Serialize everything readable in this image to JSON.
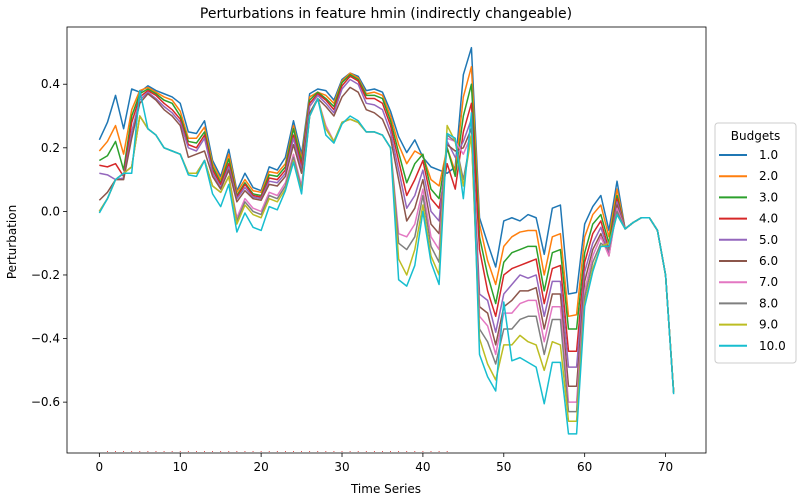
{
  "chart_data": {
    "type": "line",
    "title": "Perturbations in feature hmin (indirectly changeable)",
    "xlabel": "Time Series",
    "ylabel": "Perturbation",
    "xlim": [
      -4,
      75
    ],
    "ylim": [
      -0.76,
      0.58
    ],
    "xticks": [
      0,
      10,
      20,
      30,
      40,
      50,
      60,
      70
    ],
    "yticks": [
      -0.6,
      -0.4,
      -0.2,
      0.0,
      0.2,
      0.4
    ],
    "ytick_labels": [
      "−0.6",
      "−0.4",
      "−0.2",
      "0.0",
      "0.2",
      "0.4"
    ],
    "grid": false,
    "legend": {
      "title": "Budgets",
      "placement": "right-outside"
    },
    "x": [
      0,
      1,
      2,
      3,
      4,
      5,
      6,
      7,
      8,
      9,
      10,
      11,
      12,
      13,
      14,
      15,
      16,
      17,
      18,
      19,
      20,
      21,
      22,
      23,
      24,
      25,
      26,
      27,
      28,
      29,
      30,
      31,
      32,
      33,
      34,
      35,
      36,
      37,
      38,
      39,
      40,
      41,
      42,
      43,
      44,
      45,
      46,
      47,
      48,
      49,
      50,
      51,
      52,
      53,
      54,
      55,
      56,
      57,
      58,
      59,
      60,
      61,
      62,
      63,
      64,
      65,
      66,
      67,
      68,
      69,
      70,
      71
    ],
    "series": [
      {
        "name": "1.0",
        "color": "#1f77b4",
        "values": [
          0.225,
          0.28,
          0.365,
          0.26,
          0.385,
          0.375,
          0.395,
          0.38,
          0.37,
          0.36,
          0.34,
          0.25,
          0.245,
          0.285,
          0.16,
          0.11,
          0.195,
          0.065,
          0.12,
          0.075,
          0.065,
          0.14,
          0.13,
          0.17,
          0.285,
          0.18,
          0.37,
          0.385,
          0.38,
          0.35,
          0.415,
          0.435,
          0.425,
          0.38,
          0.385,
          0.375,
          0.315,
          0.235,
          0.185,
          0.225,
          0.17,
          0.14,
          0.13,
          0.12,
          0.14,
          0.43,
          0.515,
          -0.02,
          -0.1,
          -0.175,
          -0.03,
          -0.02,
          -0.03,
          -0.01,
          -0.02,
          -0.135,
          0.01,
          0.02,
          -0.26,
          -0.255,
          -0.04,
          0.015,
          0.05,
          -0.06,
          0.095,
          -0.055,
          -0.035,
          -0.02,
          -0.02,
          -0.06,
          -0.2,
          -0.57
        ]
      },
      {
        "name": "2.0",
        "color": "#ff7f0e",
        "values": [
          0.19,
          0.22,
          0.27,
          0.18,
          0.32,
          0.38,
          0.39,
          0.375,
          0.36,
          0.35,
          0.315,
          0.23,
          0.23,
          0.265,
          0.15,
          0.1,
          0.18,
          0.06,
          0.1,
          0.065,
          0.06,
          0.125,
          0.12,
          0.15,
          0.27,
          0.165,
          0.36,
          0.375,
          0.365,
          0.34,
          0.41,
          0.435,
          0.42,
          0.37,
          0.375,
          0.365,
          0.3,
          0.21,
          0.15,
          0.19,
          0.175,
          0.1,
          0.08,
          0.2,
          0.125,
          0.36,
          0.455,
          -0.04,
          -0.155,
          -0.23,
          -0.11,
          -0.08,
          -0.065,
          -0.06,
          -0.06,
          -0.2,
          -0.08,
          -0.07,
          -0.33,
          -0.325,
          -0.08,
          -0.01,
          0.02,
          -0.08,
          0.07,
          -0.055,
          -0.035,
          -0.02,
          -0.02,
          -0.06,
          -0.2,
          -0.57
        ]
      },
      {
        "name": "3.0",
        "color": "#2ca02c",
        "values": [
          0.16,
          0.175,
          0.22,
          0.13,
          0.3,
          0.37,
          0.385,
          0.37,
          0.35,
          0.34,
          0.3,
          0.22,
          0.215,
          0.25,
          0.14,
          0.09,
          0.165,
          0.05,
          0.09,
          0.055,
          0.05,
          0.115,
          0.11,
          0.14,
          0.26,
          0.155,
          0.35,
          0.375,
          0.355,
          0.33,
          0.405,
          0.43,
          0.415,
          0.365,
          0.365,
          0.355,
          0.285,
          0.185,
          0.09,
          0.15,
          0.18,
          0.07,
          0.04,
          0.2,
          0.11,
          0.3,
          0.4,
          -0.08,
          -0.2,
          -0.29,
          -0.16,
          -0.13,
          -0.12,
          -0.11,
          -0.11,
          -0.25,
          -0.13,
          -0.12,
          -0.37,
          -0.37,
          -0.13,
          -0.04,
          -0.01,
          -0.1,
          0.05,
          -0.055,
          -0.035,
          -0.02,
          -0.02,
          -0.06,
          -0.2,
          -0.57
        ]
      },
      {
        "name": "4.0",
        "color": "#d62728",
        "values": [
          0.145,
          0.14,
          0.15,
          0.11,
          0.28,
          0.36,
          0.38,
          0.365,
          0.34,
          0.32,
          0.29,
          0.21,
          0.2,
          0.24,
          0.13,
          0.085,
          0.15,
          0.045,
          0.085,
          0.05,
          0.045,
          0.105,
          0.1,
          0.13,
          0.24,
          0.145,
          0.34,
          0.37,
          0.35,
          0.32,
          0.395,
          0.425,
          0.41,
          0.355,
          0.355,
          0.34,
          0.27,
          0.16,
          0.05,
          0.1,
          0.16,
          0.04,
          0.01,
          0.15,
          0.07,
          0.25,
          0.34,
          -0.12,
          -0.25,
          -0.33,
          -0.2,
          -0.18,
          -0.17,
          -0.16,
          -0.15,
          -0.29,
          -0.18,
          -0.17,
          -0.44,
          -0.44,
          -0.16,
          -0.07,
          -0.03,
          -0.12,
          0.04,
          -0.055,
          -0.035,
          -0.02,
          -0.02,
          -0.06,
          -0.2,
          -0.57
        ]
      },
      {
        "name": "5.0",
        "color": "#9467bd",
        "values": [
          0.12,
          0.115,
          0.1,
          0.105,
          0.25,
          0.35,
          0.375,
          0.355,
          0.33,
          0.31,
          0.28,
          0.2,
          0.19,
          0.23,
          0.12,
          0.075,
          0.14,
          0.04,
          0.075,
          0.045,
          0.04,
          0.095,
          0.09,
          0.12,
          0.23,
          0.13,
          0.33,
          0.365,
          0.34,
          0.31,
          0.385,
          0.415,
          0.4,
          0.34,
          0.335,
          0.32,
          0.25,
          0.13,
          0.01,
          0.05,
          0.13,
          0.0,
          -0.03,
          0.22,
          0.17,
          0.22,
          0.29,
          -0.26,
          -0.28,
          -0.38,
          -0.26,
          -0.23,
          -0.2,
          -0.21,
          -0.2,
          -0.33,
          -0.22,
          -0.22,
          -0.49,
          -0.49,
          -0.19,
          -0.1,
          -0.05,
          -0.13,
          0.03,
          -0.055,
          -0.035,
          -0.02,
          -0.02,
          -0.06,
          -0.2,
          -0.57
        ]
      },
      {
        "name": "6.0",
        "color": "#8c564b",
        "values": [
          0.035,
          0.06,
          0.1,
          0.1,
          0.23,
          0.34,
          0.37,
          0.35,
          0.32,
          0.3,
          0.27,
          0.17,
          0.18,
          0.19,
          0.11,
          0.07,
          0.13,
          0.03,
          0.065,
          0.04,
          0.035,
          0.085,
          0.08,
          0.11,
          0.21,
          0.12,
          0.31,
          0.355,
          0.33,
          0.3,
          0.36,
          0.39,
          0.375,
          0.32,
          0.31,
          0.29,
          0.23,
          0.1,
          -0.03,
          0.01,
          0.1,
          -0.04,
          -0.07,
          0.21,
          0.19,
          0.2,
          0.26,
          -0.3,
          -0.32,
          -0.42,
          -0.3,
          -0.28,
          -0.25,
          -0.25,
          -0.24,
          -0.37,
          -0.26,
          -0.26,
          -0.55,
          -0.55,
          -0.22,
          -0.12,
          -0.07,
          -0.14,
          0.02,
          -0.055,
          -0.035,
          -0.02,
          -0.02,
          -0.06,
          -0.2,
          -0.57
        ]
      },
      {
        "name": "7.0",
        "color": "#e377c2",
        "values": [
          0.0,
          0.04,
          0.1,
          0.12,
          0.14,
          0.3,
          0.26,
          0.24,
          0.2,
          0.19,
          0.18,
          0.12,
          0.12,
          0.16,
          0.08,
          0.06,
          0.11,
          -0.02,
          0.04,
          0.01,
          0.0,
          0.06,
          0.05,
          0.09,
          0.18,
          0.08,
          0.3,
          0.355,
          0.27,
          0.22,
          0.28,
          0.29,
          0.28,
          0.25,
          0.25,
          0.24,
          0.2,
          -0.07,
          -0.08,
          -0.04,
          0.07,
          -0.08,
          -0.12,
          0.23,
          0.22,
          0.18,
          0.24,
          -0.33,
          -0.36,
          -0.45,
          -0.32,
          -0.32,
          -0.29,
          -0.28,
          -0.28,
          -0.41,
          -0.3,
          -0.3,
          -0.6,
          -0.6,
          -0.25,
          -0.14,
          -0.08,
          -0.14,
          0.01,
          -0.055,
          -0.035,
          -0.02,
          -0.02,
          -0.06,
          -0.2,
          -0.57
        ]
      },
      {
        "name": "8.0",
        "color": "#7f7f7f",
        "values": [
          0.0,
          0.04,
          0.1,
          0.12,
          0.14,
          0.3,
          0.26,
          0.24,
          0.2,
          0.19,
          0.18,
          0.12,
          0.12,
          0.16,
          0.08,
          0.06,
          0.11,
          -0.03,
          0.03,
          0.0,
          -0.01,
          0.05,
          0.04,
          0.08,
          0.17,
          0.07,
          0.3,
          0.355,
          0.26,
          0.22,
          0.28,
          0.29,
          0.28,
          0.25,
          0.25,
          0.24,
          0.2,
          -0.1,
          -0.12,
          -0.08,
          0.05,
          -0.11,
          -0.16,
          0.24,
          0.22,
          0.1,
          0.24,
          -0.37,
          -0.41,
          -0.48,
          -0.37,
          -0.37,
          -0.34,
          -0.33,
          -0.33,
          -0.45,
          -0.34,
          -0.34,
          -0.63,
          -0.63,
          -0.27,
          -0.16,
          -0.1,
          -0.12,
          0.0,
          -0.055,
          -0.035,
          -0.02,
          -0.02,
          -0.06,
          -0.2,
          -0.57
        ]
      },
      {
        "name": "9.0",
        "color": "#bcbd22",
        "values": [
          0.0,
          0.04,
          0.1,
          0.12,
          0.14,
          0.3,
          0.26,
          0.24,
          0.2,
          0.19,
          0.18,
          0.12,
          0.12,
          0.16,
          0.08,
          0.06,
          0.11,
          -0.04,
          0.02,
          -0.01,
          -0.02,
          0.04,
          0.03,
          0.07,
          0.16,
          0.06,
          0.3,
          0.355,
          0.26,
          0.22,
          0.28,
          0.29,
          0.28,
          0.25,
          0.25,
          0.24,
          0.2,
          -0.15,
          -0.2,
          -0.12,
          0.02,
          -0.14,
          -0.2,
          0.27,
          0.22,
          0.08,
          0.24,
          -0.4,
          -0.48,
          -0.53,
          -0.42,
          -0.42,
          -0.39,
          -0.41,
          -0.42,
          -0.5,
          -0.41,
          -0.42,
          -0.66,
          -0.66,
          -0.29,
          -0.18,
          -0.11,
          -0.1,
          -0.01,
          -0.055,
          -0.035,
          -0.02,
          -0.02,
          -0.06,
          -0.2,
          -0.57
        ]
      },
      {
        "name": "10.0",
        "color": "#17becf",
        "values": [
          -0.005,
          0.04,
          0.1,
          0.12,
          0.12,
          0.38,
          0.26,
          0.24,
          0.2,
          0.19,
          0.18,
          0.115,
          0.11,
          0.16,
          0.055,
          0.015,
          0.085,
          -0.065,
          -0.005,
          -0.05,
          -0.06,
          0.015,
          0.005,
          0.065,
          0.155,
          0.055,
          0.3,
          0.355,
          0.24,
          0.215,
          0.275,
          0.3,
          0.285,
          0.25,
          0.25,
          0.24,
          0.2,
          -0.215,
          -0.235,
          -0.17,
          0.0,
          -0.16,
          -0.23,
          0.245,
          0.23,
          0.04,
          0.31,
          -0.45,
          -0.52,
          -0.565,
          -0.285,
          -0.47,
          -0.46,
          -0.475,
          -0.49,
          -0.605,
          -0.475,
          -0.475,
          -0.7,
          -0.7,
          -0.3,
          -0.19,
          -0.11,
          -0.11,
          -0.01,
          -0.055,
          -0.035,
          -0.02,
          -0.02,
          -0.06,
          -0.2,
          -0.575
        ]
      }
    ]
  }
}
